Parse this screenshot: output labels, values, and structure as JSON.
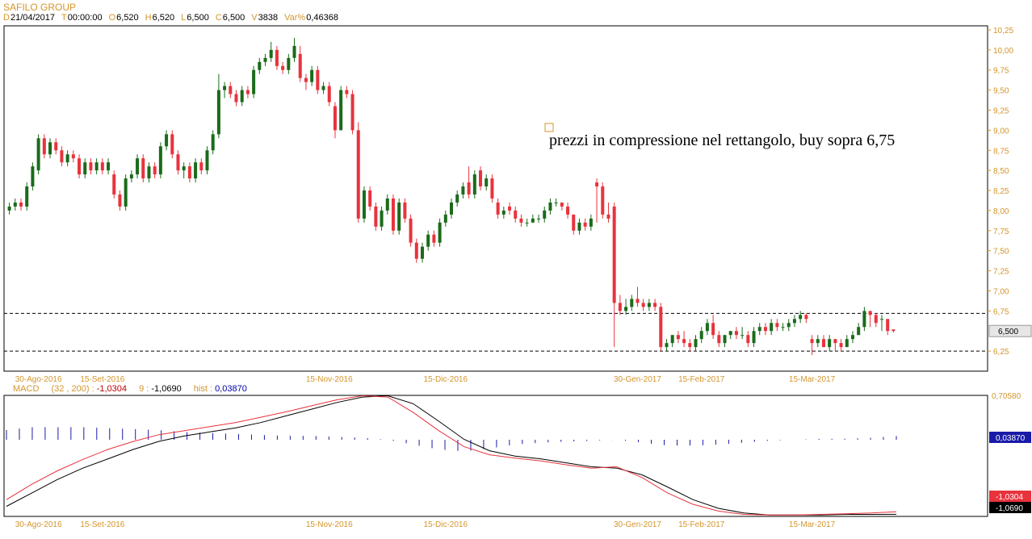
{
  "header": {
    "title": "SAFILO GROUP",
    "ohlc": [
      {
        "key": "D",
        "value": "21/04/2017"
      },
      {
        "key": "T",
        "value": "00:00:00"
      },
      {
        "key": "O",
        "value": "6,520"
      },
      {
        "key": "H",
        "value": "6,520"
      },
      {
        "key": "L",
        "value": "6,500"
      },
      {
        "key": "C",
        "value": "6,500"
      },
      {
        "key": "V",
        "value": "3838"
      },
      {
        "key": "Var%",
        "value": "0,46368"
      }
    ]
  },
  "annotation": {
    "text": "prezzi in compressione nel rettangolo, buy sopra 6,75"
  },
  "macd_header": {
    "name": "MACD",
    "params": "(32 , 200) :",
    "macd_value": "-1,0304",
    "signal_period": "9 :",
    "signal_value": "-1,0690",
    "hist_label": "hist :",
    "hist_value": "0,03870"
  },
  "colors": {
    "up": "#1a6b1a",
    "down": "#e8333d",
    "axis": "#d4952b",
    "macd_line": "#e8333d",
    "signal_line": "#000000",
    "hist": "#1a1aa8"
  },
  "chart_data": [
    {
      "type": "candlestick",
      "title": "SAFILO GROUP",
      "ylim": [
        6.0,
        10.3
      ],
      "yticks": [
        "10,25",
        "10,00",
        "9,75",
        "9,50",
        "9,25",
        "9,00",
        "8,75",
        "8,50",
        "8,25",
        "8,00",
        "7,75",
        "7,50",
        "7,25",
        "7,00",
        "6,75",
        "6,25"
      ],
      "ytick_values": [
        10.25,
        10.0,
        9.75,
        9.5,
        9.25,
        9.0,
        8.75,
        8.5,
        8.25,
        8.0,
        7.75,
        7.5,
        7.25,
        7.0,
        6.75,
        6.25
      ],
      "last_price": {
        "label": "6,500",
        "value": 6.5
      },
      "horizontal_levels": [
        6.72,
        6.25
      ],
      "x_labels": [
        "30-Ago-2016",
        "15-Set-2016",
        "15-Nov-2016",
        "15-Dic-2016",
        "30-Gen-2017",
        "15-Feb-2017",
        "15-Mar-2017"
      ],
      "x_label_index": [
        5,
        16,
        55,
        75,
        108,
        119,
        138
      ],
      "close": [
        8.05,
        8.1,
        8.05,
        8.3,
        8.55,
        8.9,
        8.7,
        8.85,
        8.75,
        8.6,
        8.7,
        8.65,
        8.45,
        8.6,
        8.5,
        8.6,
        8.5,
        8.6,
        8.2,
        8.05,
        8.4,
        8.45,
        8.65,
        8.4,
        8.55,
        8.45,
        8.8,
        8.95,
        8.7,
        8.5,
        8.55,
        8.4,
        8.6,
        8.5,
        8.75,
        8.95,
        9.5,
        9.55,
        9.45,
        9.35,
        9.5,
        9.45,
        9.75,
        9.85,
        9.9,
        10.0,
        9.8,
        9.75,
        9.9,
        10.05,
        9.65,
        9.6,
        9.75,
        9.5,
        9.55,
        9.35,
        9.0,
        9.5,
        9.45,
        9.0,
        7.9,
        8.25,
        8.05,
        7.8,
        8.0,
        8.15,
        7.75,
        8.1,
        7.9,
        7.6,
        7.4,
        7.55,
        7.7,
        7.6,
        7.85,
        7.95,
        8.1,
        8.2,
        8.3,
        8.2,
        8.45,
        8.3,
        8.4,
        8.15,
        7.95,
        8.0,
        8.0,
        7.9,
        7.85,
        7.85,
        7.9,
        7.9,
        8.0,
        8.1,
        8.1,
        8.05,
        7.95,
        7.75,
        7.85,
        7.8,
        7.9,
        8.3,
        7.95,
        7.9,
        6.85,
        6.75,
        6.8,
        6.9,
        6.85,
        6.8,
        6.85,
        6.8,
        6.3,
        6.35,
        6.45,
        6.4,
        6.35,
        6.3,
        6.4,
        6.5,
        6.6,
        6.45,
        6.35,
        6.45,
        6.5,
        6.45,
        6.45,
        6.35,
        6.5,
        6.55,
        6.5,
        6.6,
        6.55,
        6.55,
        6.6,
        6.65,
        6.7,
        6.65,
        6.35,
        6.4,
        6.3,
        6.4,
        6.35,
        6.3,
        6.4,
        6.45,
        6.55,
        6.75,
        6.7,
        6.6,
        6.65,
        6.5,
        6.5
      ],
      "open": [
        8.0,
        8.05,
        8.1,
        8.05,
        8.3,
        8.5,
        8.9,
        8.7,
        8.85,
        8.75,
        8.6,
        8.7,
        8.65,
        8.45,
        8.6,
        8.5,
        8.6,
        8.5,
        8.45,
        8.2,
        8.05,
        8.4,
        8.45,
        8.65,
        8.4,
        8.55,
        8.45,
        8.8,
        8.95,
        8.7,
        8.5,
        8.55,
        8.4,
        8.6,
        8.5,
        8.75,
        8.95,
        9.5,
        9.55,
        9.45,
        9.35,
        9.5,
        9.45,
        9.75,
        9.85,
        9.9,
        10.0,
        9.8,
        9.75,
        9.9,
        9.95,
        9.65,
        9.6,
        9.75,
        9.5,
        9.55,
        9.3,
        9.0,
        9.5,
        9.45,
        9.0,
        7.9,
        8.25,
        8.05,
        7.8,
        8.0,
        8.15,
        7.75,
        8.1,
        7.9,
        7.6,
        7.4,
        7.55,
        7.7,
        7.6,
        7.85,
        7.95,
        8.1,
        8.2,
        8.35,
        8.2,
        8.5,
        8.3,
        8.4,
        8.1,
        7.95,
        8.05,
        8.0,
        7.9,
        7.85,
        7.85,
        7.9,
        7.9,
        8.0,
        8.1,
        8.1,
        8.05,
        7.95,
        7.75,
        7.85,
        7.8,
        8.35,
        8.3,
        7.95,
        8.05,
        6.85,
        6.75,
        6.8,
        6.9,
        6.85,
        6.8,
        6.85,
        6.8,
        6.3,
        6.35,
        6.45,
        6.4,
        6.35,
        6.3,
        6.4,
        6.5,
        6.6,
        6.45,
        6.35,
        6.45,
        6.5,
        6.45,
        6.45,
        6.35,
        6.5,
        6.55,
        6.5,
        6.6,
        6.55,
        6.55,
        6.6,
        6.65,
        6.7,
        6.4,
        6.35,
        6.4,
        6.3,
        6.4,
        6.35,
        6.3,
        6.4,
        6.45,
        6.55,
        6.75,
        6.7,
        6.65,
        6.65,
        6.52
      ],
      "high": [
        8.1,
        8.15,
        8.15,
        8.35,
        8.6,
        8.95,
        8.95,
        8.9,
        8.9,
        8.8,
        8.75,
        8.75,
        8.7,
        8.65,
        8.65,
        8.65,
        8.65,
        8.65,
        8.5,
        8.25,
        8.45,
        8.5,
        8.7,
        8.7,
        8.6,
        8.6,
        8.85,
        9.0,
        9.0,
        8.75,
        8.6,
        8.6,
        8.65,
        8.65,
        8.8,
        9.0,
        9.7,
        9.6,
        9.6,
        9.5,
        9.55,
        9.55,
        9.8,
        9.9,
        9.95,
        10.1,
        10.05,
        9.85,
        9.95,
        10.15,
        10.05,
        9.7,
        9.8,
        9.8,
        9.6,
        9.6,
        9.35,
        9.55,
        9.55,
        9.5,
        9.1,
        8.3,
        8.3,
        8.1,
        8.05,
        8.2,
        8.2,
        8.15,
        8.15,
        7.95,
        7.65,
        7.6,
        7.75,
        7.75,
        7.9,
        8.0,
        8.15,
        8.25,
        8.35,
        8.55,
        8.5,
        8.55,
        8.45,
        8.45,
        8.15,
        8.05,
        8.1,
        8.05,
        7.95,
        7.9,
        7.95,
        7.95,
        8.05,
        8.15,
        8.15,
        8.1,
        8.1,
        7.95,
        7.9,
        7.9,
        7.95,
        8.4,
        8.35,
        8.1,
        8.1,
        6.95,
        6.9,
        6.95,
        7.05,
        6.9,
        6.9,
        6.9,
        6.85,
        6.4,
        6.45,
        6.5,
        6.5,
        6.4,
        6.45,
        6.55,
        6.65,
        6.7,
        6.5,
        6.45,
        6.5,
        6.55,
        6.55,
        6.5,
        6.55,
        6.6,
        6.6,
        6.65,
        6.65,
        6.6,
        6.65,
        6.7,
        6.75,
        6.72,
        6.45,
        6.45,
        6.45,
        6.45,
        6.4,
        6.4,
        6.45,
        6.5,
        6.6,
        6.8,
        6.75,
        6.72,
        6.7,
        6.65,
        6.52
      ],
      "low": [
        7.95,
        8.0,
        8.0,
        8.0,
        8.25,
        8.45,
        8.65,
        8.65,
        8.7,
        8.55,
        8.55,
        8.6,
        8.4,
        8.4,
        8.45,
        8.45,
        8.45,
        8.45,
        8.15,
        8.0,
        8.0,
        8.35,
        8.4,
        8.35,
        8.35,
        8.4,
        8.4,
        8.75,
        8.65,
        8.45,
        8.4,
        8.35,
        8.35,
        8.45,
        8.45,
        8.7,
        8.9,
        9.4,
        9.4,
        9.3,
        9.3,
        9.4,
        9.4,
        9.7,
        9.8,
        9.85,
        9.75,
        9.7,
        9.7,
        9.85,
        9.6,
        9.5,
        9.55,
        9.45,
        9.45,
        9.3,
        8.9,
        9.0,
        9.4,
        8.95,
        7.85,
        7.85,
        8.0,
        7.75,
        7.75,
        7.95,
        7.7,
        7.7,
        7.85,
        7.55,
        7.35,
        7.35,
        7.5,
        7.55,
        7.55,
        7.8,
        7.9,
        8.05,
        8.15,
        8.15,
        8.15,
        8.25,
        8.25,
        8.1,
        7.9,
        7.9,
        7.95,
        7.85,
        7.8,
        7.8,
        7.85,
        7.85,
        7.85,
        7.95,
        8.05,
        8.0,
        7.9,
        7.7,
        7.7,
        7.75,
        7.75,
        7.85,
        7.9,
        7.85,
        6.3,
        6.7,
        6.7,
        6.75,
        6.8,
        6.75,
        6.75,
        6.75,
        6.25,
        6.25,
        6.3,
        6.35,
        6.3,
        6.25,
        6.25,
        6.35,
        6.45,
        6.4,
        6.3,
        6.3,
        6.4,
        6.4,
        6.4,
        6.3,
        6.3,
        6.45,
        6.45,
        6.45,
        6.5,
        6.5,
        6.5,
        6.55,
        6.6,
        6.6,
        6.2,
        6.3,
        6.3,
        6.25,
        6.25,
        6.25,
        6.3,
        6.35,
        6.45,
        6.5,
        6.55,
        6.55,
        6.5,
        6.45,
        6.48
      ]
    },
    {
      "type": "line",
      "title": "MACD",
      "ylim": [
        -1.1,
        0.7058
      ],
      "yticks": [
        "0,70580",
        "0,03870",
        "-1,0304",
        "-1,0690"
      ],
      "series": [
        {
          "name": "MACD",
          "values": [
            -0.85,
            -0.62,
            -0.42,
            -0.25,
            -0.1,
            0.02,
            0.12,
            0.18,
            0.24,
            0.3,
            0.38,
            0.46,
            0.55,
            0.64,
            0.7,
            0.68,
            0.45,
            0.18,
            -0.06,
            -0.18,
            -0.23,
            -0.27,
            -0.33,
            -0.38,
            -0.36,
            -0.52,
            -0.75,
            -0.92,
            -1.02,
            -1.07,
            -1.08,
            -1.08,
            -1.07,
            -1.06,
            -1.05,
            -1.03
          ]
        },
        {
          "name": "Signal",
          "values": [
            -0.95,
            -0.75,
            -0.55,
            -0.38,
            -0.24,
            -0.1,
            0.02,
            0.1,
            0.16,
            0.22,
            0.3,
            0.4,
            0.5,
            0.6,
            0.68,
            0.7,
            0.58,
            0.32,
            0.05,
            -0.12,
            -0.2,
            -0.24,
            -0.3,
            -0.36,
            -0.38,
            -0.48,
            -0.66,
            -0.85,
            -0.98,
            -1.05,
            -1.08,
            -1.08,
            -1.08,
            -1.07,
            -1.07,
            -1.069
          ]
        }
      ],
      "histogram": [
        0.1,
        0.13,
        0.13,
        0.13,
        0.12,
        0.11,
        0.1,
        0.08,
        0.07,
        0.06,
        0.05,
        0.04,
        0.04,
        0.03,
        0.02,
        0.0,
        -0.05,
        -0.1,
        -0.12,
        -0.09,
        -0.05,
        -0.03,
        -0.02,
        -0.01,
        0.0,
        -0.03,
        -0.06,
        -0.06,
        -0.05,
        -0.03,
        -0.01,
        0.0,
        0.01,
        0.01,
        0.02,
        0.0387
      ],
      "x_labels": [
        "30-Ago-2016",
        "15-Set-2016",
        "15-Nov-2016",
        "15-Dic-2016",
        "30-Gen-2017",
        "15-Feb-2017",
        "15-Mar-2017"
      ]
    }
  ]
}
